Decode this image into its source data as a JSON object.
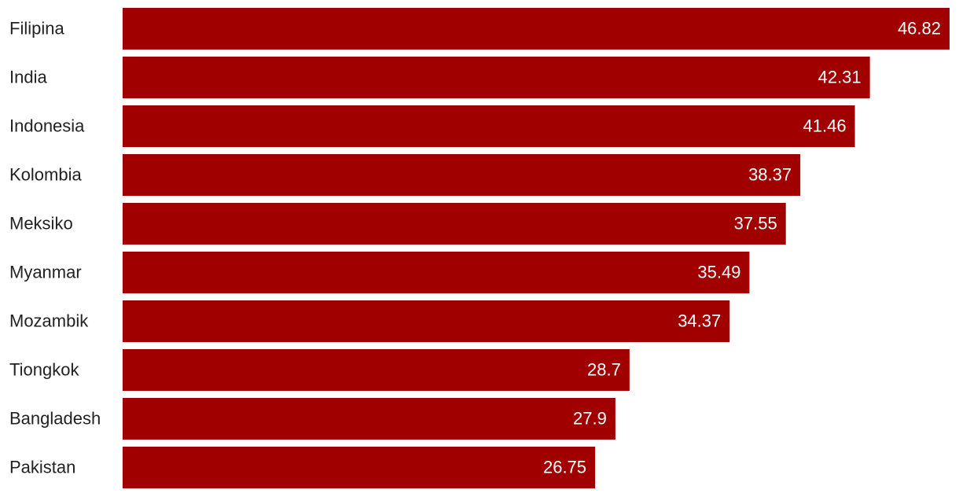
{
  "chart_data": {
    "type": "bar",
    "orientation": "horizontal",
    "categories": [
      "Filipina",
      "India",
      "Indonesia",
      "Kolombia",
      "Meksiko",
      "Myanmar",
      "Mozambik",
      "Tiongkok",
      "Bangladesh",
      "Pakistan"
    ],
    "values": [
      46.82,
      42.31,
      41.46,
      38.37,
      37.55,
      35.49,
      34.37,
      28.7,
      27.9,
      26.75
    ],
    "color": "#a00000",
    "label_color": "#ffffff",
    "grid": false
  }
}
